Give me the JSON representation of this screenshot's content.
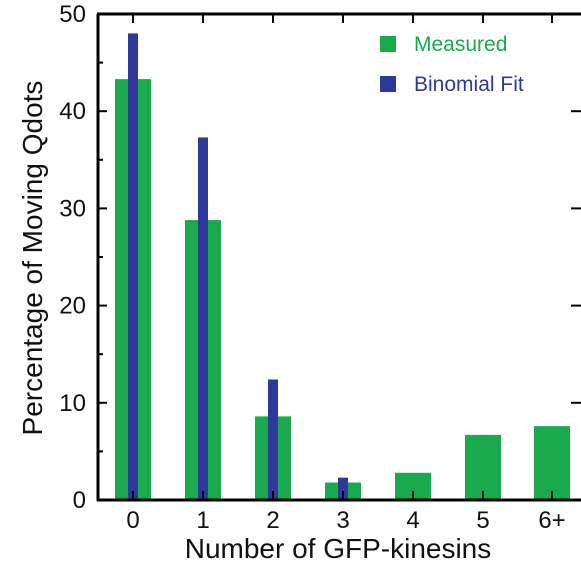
{
  "chart_data": {
    "type": "bar",
    "title": "",
    "xlabel": "Number of GFP-kinesins",
    "ylabel": "Percentage of Moving Qdots",
    "categories": [
      "0",
      "1",
      "2",
      "3",
      "4",
      "5",
      "6+"
    ],
    "ylim": [
      0,
      50
    ],
    "yticks": [
      "0",
      "10",
      "20",
      "30",
      "40",
      "50"
    ],
    "series": [
      {
        "name": "Measured",
        "color": "#1aaa4e",
        "values": [
          43.3,
          28.8,
          8.6,
          1.8,
          2.8,
          6.7,
          7.6
        ]
      },
      {
        "name": "Binomial Fit",
        "color": "#2e3a9a",
        "values": [
          48.0,
          37.3,
          12.4,
          2.3,
          null,
          null,
          null
        ]
      }
    ],
    "legend": "top-right",
    "grid": false
  }
}
